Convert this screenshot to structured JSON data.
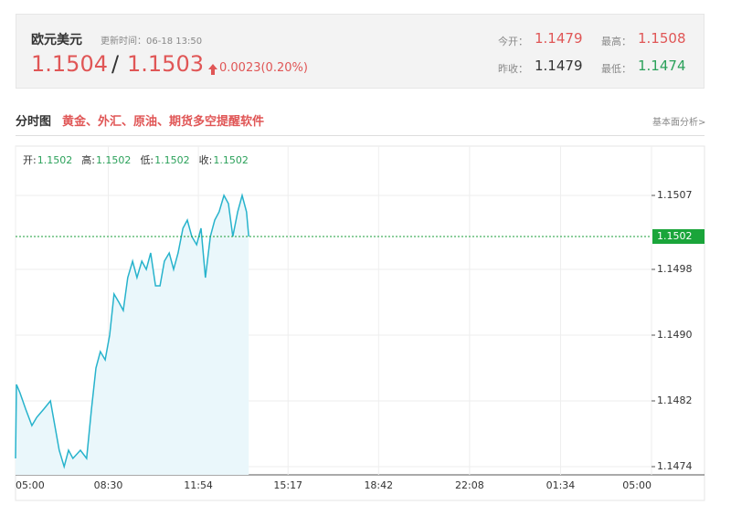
{
  "header": {
    "title": "欧元美元",
    "update_time": "更新时间：06-18 13:50",
    "bid": "1.1504",
    "separator": "/",
    "ask": "1.1503",
    "change": "0.0023(0.20%)",
    "stats": [
      {
        "label": "今开：",
        "value": "1.1479"
      },
      {
        "label": "最高：",
        "value": "1.1508"
      },
      {
        "label": "昨收：",
        "value": "1.1479"
      },
      {
        "label": "最低：",
        "value": "1.1474"
      }
    ]
  },
  "tab": {
    "title": "分时图",
    "promo": "黄金、外汇、原油、期货多空提醒软件",
    "link": "基本面分析>"
  },
  "chart_data": {
    "type": "line",
    "color": "#27b3cc",
    "info": [
      {
        "label": "开:",
        "value": "1.1502"
      },
      {
        "label": "高:",
        "value": "1.1502"
      },
      {
        "label": "低:",
        "value": "1.1502"
      },
      {
        "label": "收:",
        "value": "1.1502"
      }
    ],
    "current_price": 1.1502,
    "x": [
      0,
      2,
      10,
      23,
      37,
      48,
      64,
      79,
      89,
      99,
      110,
      120,
      130,
      147,
      161,
      172,
      182,
      192,
      203,
      213,
      223,
      234,
      244,
      254,
      265,
      275,
      286,
      296,
      306,
      317,
      327,
      337,
      348,
      358,
      368,
      379,
      389,
      399,
      410,
      420,
      430,
      441,
      451,
      461,
      472,
      482,
      492,
      503,
      513,
      523,
      528
    ],
    "values": [
      1.1475,
      1.1484,
      1.1483,
      1.1481,
      1.1479,
      1.148,
      1.1481,
      1.1482,
      1.1479,
      1.1476,
      1.1474,
      1.1476,
      1.1475,
      1.1476,
      1.1475,
      1.1481,
      1.1486,
      1.1488,
      1.1487,
      1.149,
      1.1495,
      1.1494,
      1.1493,
      1.1497,
      1.1499,
      1.1497,
      1.1499,
      1.1498,
      1.15,
      1.1496,
      1.1496,
      1.1499,
      1.15,
      1.1498,
      1.15,
      1.1503,
      1.1504,
      1.1502,
      1.1501,
      1.1503,
      1.1497,
      1.1502,
      1.1504,
      1.1505,
      1.1507,
      1.1506,
      1.1502,
      1.1505,
      1.1507,
      1.1505,
      1.1502
    ],
    "xlim": [
      0,
      1440
    ],
    "xticks": [
      {
        "value": 0,
        "label": "05:00"
      },
      {
        "value": 210,
        "label": "08:30"
      },
      {
        "value": 414,
        "label": "11:54"
      },
      {
        "value": 617,
        "label": "15:17"
      },
      {
        "value": 822,
        "label": "18:42"
      },
      {
        "value": 1028,
        "label": "22:08"
      },
      {
        "value": 1234,
        "label": "01:34"
      },
      {
        "value": 1440,
        "label": "05:00"
      }
    ],
    "ylim": [
      1.1473,
      1.1513
    ],
    "yticks": [
      1.1474,
      1.1482,
      {
        "value": 1.149,
        "label": "1.1490"
      },
      1.1498,
      1.1507
    ],
    "grid": true
  }
}
